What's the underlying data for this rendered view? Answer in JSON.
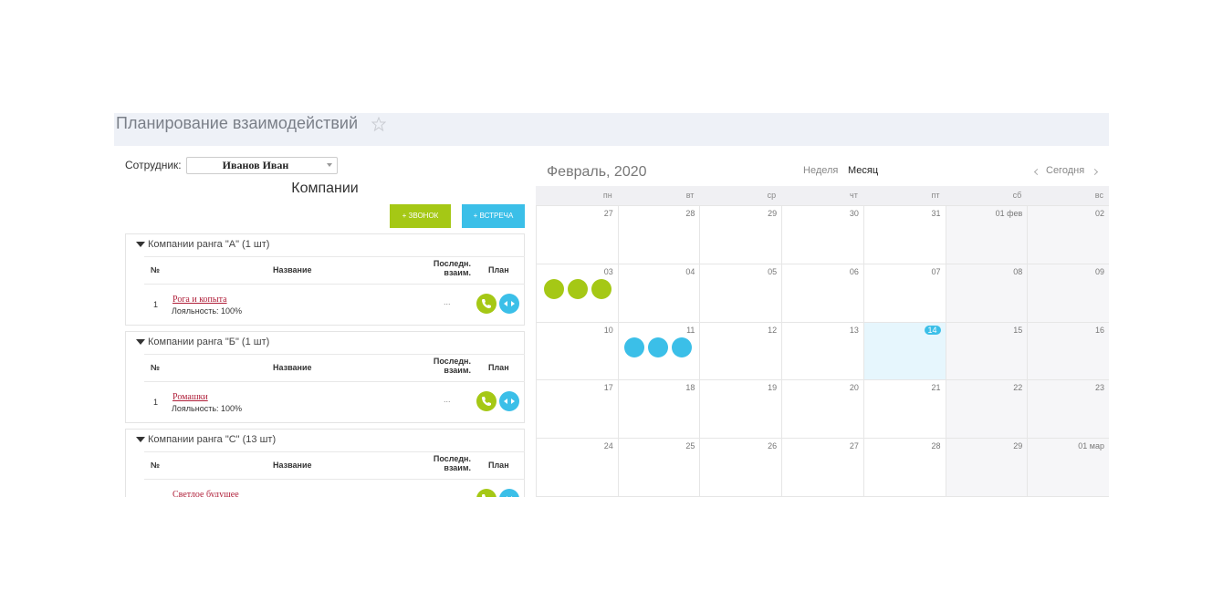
{
  "header": {
    "title": "Планирование взаимодействий"
  },
  "left": {
    "employee_label": "Сотрудник:",
    "employee": "Иванов Иван",
    "heading": "Компании",
    "buttons": [
      "+ ЗВОНОК",
      "+ ВСТРЕЧА"
    ],
    "columns": [
      "№",
      "Название",
      "Последн. взаим.",
      "План"
    ],
    "groups": [
      {
        "title": "Компании ранга \"А\" (1 шт)",
        "rows": [
          {
            "num": "1",
            "name": "Рога и копыта",
            "loyalty": "Лояльность: 100%",
            "last": "..."
          }
        ]
      },
      {
        "title": "Компании ранга \"Б\" (1 шт)",
        "rows": [
          {
            "num": "1",
            "name": "Ромашки",
            "loyalty": "Лояльность: 100%",
            "last": "..."
          }
        ]
      },
      {
        "title": "Компании ранга \"С\" (13 шт)",
        "rows": [
          {
            "name": "Светлое будущее"
          }
        ]
      }
    ]
  },
  "calendar": {
    "title": "Февраль, 2020",
    "view_week": "Неделя",
    "view_month": "Месяц",
    "today": "Сегодня",
    "weekdays": [
      "пн",
      "вт",
      "ср",
      "чт",
      "пт",
      "сб",
      "вс"
    ],
    "weeks": [
      [
        "27",
        "28",
        "29",
        "30",
        "31",
        "01 фев",
        "02"
      ],
      [
        "03",
        "04",
        "05",
        "06",
        "07",
        "08",
        "09"
      ],
      [
        "10",
        "11",
        "12",
        "13",
        "14",
        "15",
        "16"
      ],
      [
        "17",
        "18",
        "19",
        "20",
        "21",
        "22",
        "23"
      ],
      [
        "24",
        "25",
        "26",
        "27",
        "28",
        "29",
        "01 мар"
      ]
    ]
  }
}
